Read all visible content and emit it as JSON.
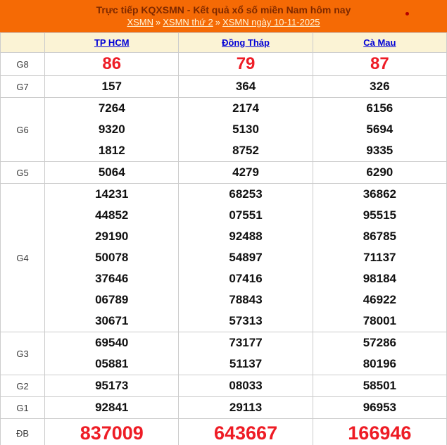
{
  "header": {
    "title": "Trực tiếp KQXSMN - Kết quả xổ số miền Nam hôm nay",
    "separator": "»",
    "breadcrumb": [
      "XSMN",
      "XSMN thứ 2",
      "XSMN ngày 10-11-2025"
    ]
  },
  "table": {
    "columns": [
      "TP HCM",
      "Đồng Tháp",
      "Cà Mau"
    ],
    "rows": [
      {
        "label": "G8",
        "highlight": true,
        "values": [
          [
            "86"
          ],
          [
            "79"
          ],
          [
            "87"
          ]
        ]
      },
      {
        "label": "G7",
        "highlight": false,
        "values": [
          [
            "157"
          ],
          [
            "364"
          ],
          [
            "326"
          ]
        ]
      },
      {
        "label": "G6",
        "highlight": false,
        "values": [
          [
            "7264",
            "9320",
            "1812"
          ],
          [
            "2174",
            "5130",
            "8752"
          ],
          [
            "6156",
            "5694",
            "9335"
          ]
        ]
      },
      {
        "label": "G5",
        "highlight": false,
        "values": [
          [
            "5064"
          ],
          [
            "4279"
          ],
          [
            "6290"
          ]
        ]
      },
      {
        "label": "G4",
        "highlight": false,
        "values": [
          [
            "14231",
            "44852",
            "29190",
            "50078",
            "37646",
            "06789",
            "30671"
          ],
          [
            "68253",
            "07551",
            "92488",
            "54897",
            "07416",
            "78843",
            "57313"
          ],
          [
            "36862",
            "95515",
            "86785",
            "71137",
            "98184",
            "46922",
            "78001"
          ]
        ]
      },
      {
        "label": "G3",
        "highlight": false,
        "values": [
          [
            "69540",
            "05881"
          ],
          [
            "73177",
            "51137"
          ],
          [
            "57286",
            "80196"
          ]
        ]
      },
      {
        "label": "G2",
        "highlight": false,
        "values": [
          [
            "95173"
          ],
          [
            "08033"
          ],
          [
            "58501"
          ]
        ]
      },
      {
        "label": "G1",
        "highlight": false,
        "values": [
          [
            "92841"
          ],
          [
            "29113"
          ],
          [
            "96953"
          ]
        ]
      },
      {
        "label": "ĐB",
        "highlight": true,
        "values": [
          [
            "837009"
          ],
          [
            "643667"
          ],
          [
            "166946"
          ]
        ]
      }
    ]
  },
  "colors": {
    "header_orange": "#F56A05",
    "title_text": "#7E2900",
    "breadcrumb_text": "#FFF7DC",
    "column_link_blue": "#0000D6",
    "highlight_red": "#EE1C25",
    "table_header_cream": "#FBF3D5",
    "border_gray": "#CCCCCC",
    "live_dot_red": "#B40000"
  }
}
